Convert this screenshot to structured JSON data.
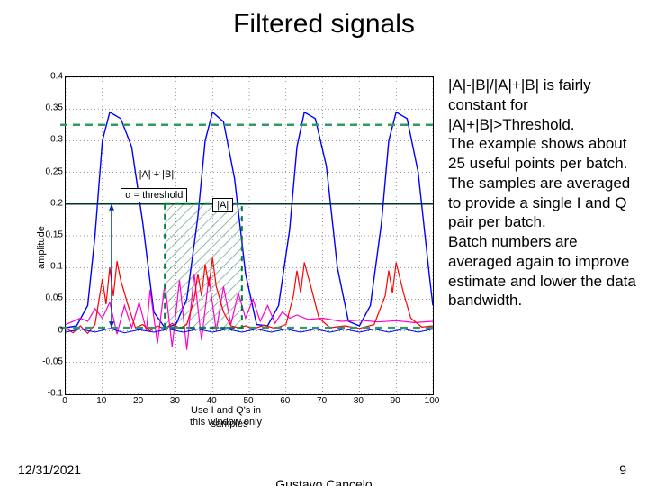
{
  "title": "Filtered signals",
  "right_text": {
    "p1": "|A|-|B|/|A|+|B| is fairly constant for |A|+|B|>Threshold.",
    "p2": "The example shows about 25 useful points per batch.",
    "p3": "The samples are averaged to provide a single I and Q pair per batch.",
    "p4": "Batch numbers are averaged again to improve estimate and lower the data bandwidth."
  },
  "chart": {
    "type": "line",
    "xlabel": "samples",
    "ylabel": "amplitude",
    "xlim": [
      0,
      100
    ],
    "ylim": [
      -0.1,
      0.4
    ],
    "xtick_step": 10,
    "ytick_step": 0.05,
    "background_color": "#ffffff",
    "axis_color": "#000000",
    "threshold_y": 0.2,
    "green_line_y": 0.005,
    "highlight_top_y": 0.325,
    "highlight_top_color": "#339966",
    "highlight_top_dash": "8,6",
    "window_x": [
      27,
      48
    ],
    "window_fill": "#bfe0d0",
    "window_border_color": "#008040",
    "window_border_dash": "6,5",
    "window_border_width": 2,
    "vertical_marker_x": 12.5,
    "vertical_marker_color": "#0033aa",
    "vertical_marker_width": 1.5,
    "annotations": {
      "alpha_threshold": "α = threshold",
      "sum_label": "|A| + |B|",
      "a_label": "|A|",
      "window_caption_l1": "Use I and Q's in",
      "window_caption_l2": "this window only"
    },
    "series": {
      "blue_top": {
        "color": "#0000ff",
        "width": 1.4,
        "points": [
          [
            0,
            0.005
          ],
          [
            3,
            0.008
          ],
          [
            6,
            0.04
          ],
          [
            8,
            0.15
          ],
          [
            10,
            0.3
          ],
          [
            12,
            0.345
          ],
          [
            15,
            0.335
          ],
          [
            18,
            0.29
          ],
          [
            21,
            0.17
          ],
          [
            24,
            0.03
          ],
          [
            27,
            0.005
          ],
          [
            30,
            0.01
          ],
          [
            33,
            0.05
          ],
          [
            36,
            0.18
          ],
          [
            38,
            0.3
          ],
          [
            40,
            0.345
          ],
          [
            43,
            0.33
          ],
          [
            46,
            0.24
          ],
          [
            49,
            0.09
          ],
          [
            52,
            0.01
          ],
          [
            55,
            0.008
          ],
          [
            58,
            0.04
          ],
          [
            61,
            0.16
          ],
          [
            63,
            0.29
          ],
          [
            65,
            0.345
          ],
          [
            68,
            0.335
          ],
          [
            71,
            0.26
          ],
          [
            74,
            0.1
          ],
          [
            77,
            0.015
          ],
          [
            80,
            0.008
          ],
          [
            83,
            0.04
          ],
          [
            86,
            0.17
          ],
          [
            88,
            0.3
          ],
          [
            90,
            0.345
          ],
          [
            93,
            0.335
          ],
          [
            96,
            0.25
          ],
          [
            99,
            0.09
          ],
          [
            100,
            0.04
          ]
        ]
      },
      "magenta": {
        "color": "#ff00cc",
        "width": 1.2,
        "points": [
          [
            0,
            0.01
          ],
          [
            4,
            0.02
          ],
          [
            6,
            0.015
          ],
          [
            8,
            0.035
          ],
          [
            10,
            0.02
          ],
          [
            12,
            0.045
          ],
          [
            14,
            -0.005
          ],
          [
            16,
            0.04
          ],
          [
            18,
            0.005
          ],
          [
            20,
            0.045
          ],
          [
            22,
            0.0
          ],
          [
            23,
            0.065
          ],
          [
            25,
            -0.02
          ],
          [
            27,
            0.075
          ],
          [
            29,
            -0.025
          ],
          [
            31,
            0.08
          ],
          [
            33,
            -0.03
          ],
          [
            35,
            0.09
          ],
          [
            37,
            -0.015
          ],
          [
            39,
            0.085
          ],
          [
            41,
            0.0
          ],
          [
            43,
            0.07
          ],
          [
            45,
            0.01
          ],
          [
            47,
            0.06
          ],
          [
            49,
            0.02
          ],
          [
            51,
            0.05
          ],
          [
            53,
            0.015
          ],
          [
            55,
            0.04
          ],
          [
            57,
            0.012
          ],
          [
            59,
            0.03
          ],
          [
            61,
            0.02
          ],
          [
            63,
            0.025
          ],
          [
            66,
            0.018
          ],
          [
            70,
            0.02
          ],
          [
            75,
            0.015
          ],
          [
            80,
            0.017
          ],
          [
            85,
            0.014
          ],
          [
            90,
            0.016
          ],
          [
            95,
            0.013
          ],
          [
            100,
            0.015
          ]
        ]
      },
      "red": {
        "color": "#ff0000",
        "width": 1.2,
        "points": [
          [
            0,
            0.005
          ],
          [
            2,
            -0.003
          ],
          [
            4,
            0.008
          ],
          [
            6,
            -0.004
          ],
          [
            8,
            0.01
          ],
          [
            10,
            0.082
          ],
          [
            11,
            0.042
          ],
          [
            12,
            0.1
          ],
          [
            13,
            0.055
          ],
          [
            14,
            0.11
          ],
          [
            15,
            0.08
          ],
          [
            17,
            0.04
          ],
          [
            19,
            0.005
          ],
          [
            21,
            0.01
          ],
          [
            23,
            0.0
          ],
          [
            25,
            0.008
          ],
          [
            27,
            0.003
          ],
          [
            29,
            0.012
          ],
          [
            31,
            0.004
          ],
          [
            33,
            0.01
          ],
          [
            35,
            0.05
          ],
          [
            36,
            0.09
          ],
          [
            37,
            0.055
          ],
          [
            38,
            0.105
          ],
          [
            39,
            0.07
          ],
          [
            40,
            0.115
          ],
          [
            41,
            0.07
          ],
          [
            43,
            0.03
          ],
          [
            45,
            0.008
          ],
          [
            47,
            0.005
          ],
          [
            49,
            0.008
          ],
          [
            51,
            0.003
          ],
          [
            54,
            0.009
          ],
          [
            57,
            0.004
          ],
          [
            60,
            0.01
          ],
          [
            62,
            0.055
          ],
          [
            63,
            0.095
          ],
          [
            64,
            0.06
          ],
          [
            65,
            0.108
          ],
          [
            67,
            0.065
          ],
          [
            69,
            0.02
          ],
          [
            72,
            0.005
          ],
          [
            76,
            0.008
          ],
          [
            80,
            0.004
          ],
          [
            84,
            0.01
          ],
          [
            87,
            0.055
          ],
          [
            88,
            0.095
          ],
          [
            89,
            0.06
          ],
          [
            90,
            0.108
          ],
          [
            92,
            0.06
          ],
          [
            94,
            0.02
          ],
          [
            97,
            0.006
          ],
          [
            100,
            0.008
          ]
        ]
      },
      "blue_low": {
        "color": "#0000ff",
        "width": 1.0,
        "points": [
          [
            0,
            -0.002
          ],
          [
            4,
            0.003
          ],
          [
            8,
            -0.002
          ],
          [
            12,
            0.004
          ],
          [
            16,
            -0.003
          ],
          [
            20,
            0.002
          ],
          [
            24,
            -0.002
          ],
          [
            28,
            0.003
          ],
          [
            32,
            -0.002
          ],
          [
            36,
            0.003
          ],
          [
            40,
            -0.002
          ],
          [
            44,
            0.003
          ],
          [
            48,
            -0.002
          ],
          [
            52,
            0.003
          ],
          [
            56,
            -0.002
          ],
          [
            60,
            0.003
          ],
          [
            64,
            -0.002
          ],
          [
            68,
            0.003
          ],
          [
            72,
            -0.002
          ],
          [
            76,
            0.003
          ],
          [
            80,
            -0.002
          ],
          [
            84,
            0.003
          ],
          [
            88,
            -0.002
          ],
          [
            92,
            0.003
          ],
          [
            96,
            -0.002
          ],
          [
            100,
            0.003
          ]
        ]
      }
    }
  },
  "footer": {
    "date": "12/31/2021",
    "author": "Gustavo Cancelo",
    "page": "9"
  }
}
